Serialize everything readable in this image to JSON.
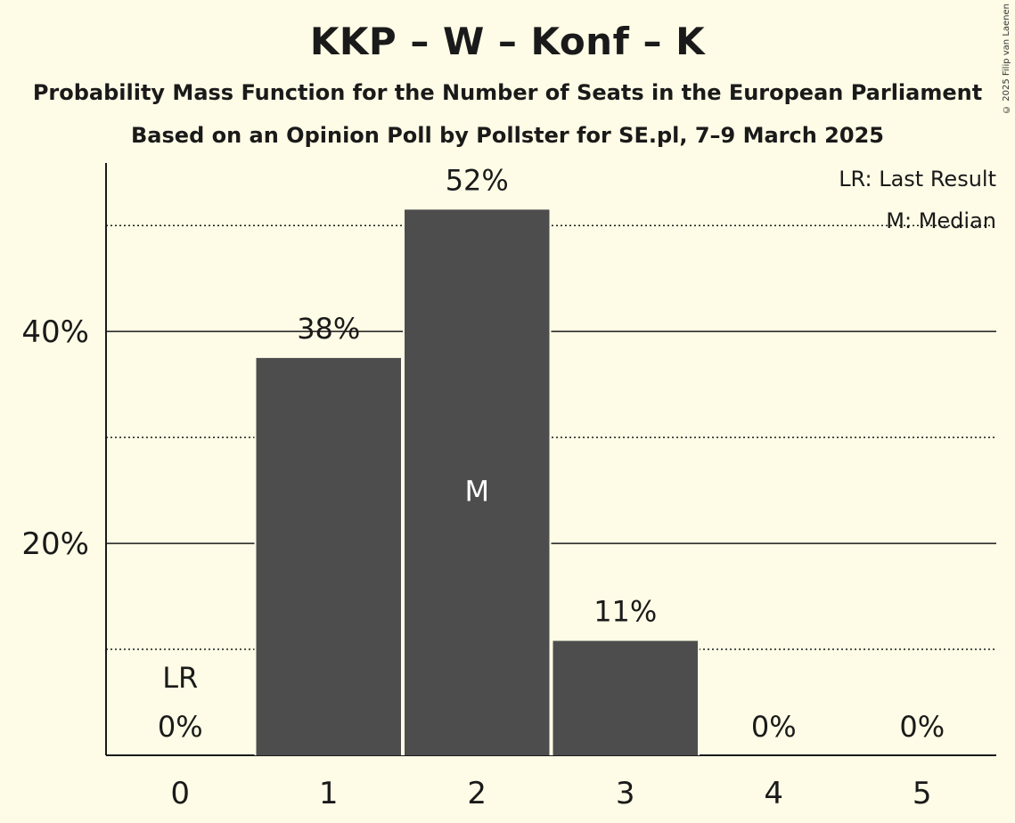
{
  "title": "KKP – W – Konf – K",
  "subtitle": "Probability Mass Function for the Number of Seats in the European Parliament",
  "subtitle2": "Based on an Opinion Poll by Pollster for SE.pl, 7–9 March 2025",
  "copyright": "© 2025 Filip van Laenen",
  "legend": {
    "last_result": "LR: Last Result",
    "median": "M: Median"
  },
  "colors": {
    "background": "#fefce6",
    "bar": "#4d4d4d",
    "text": "#1a1a1a"
  },
  "chart_data": {
    "type": "bar",
    "categories": [
      "0",
      "1",
      "2",
      "3",
      "4",
      "5"
    ],
    "values": [
      0,
      37.5,
      51.5,
      10.8,
      0,
      0
    ],
    "data_labels": [
      "0%",
      "38%",
      "52%",
      "11%",
      "0%",
      "0%"
    ],
    "ylim": [
      0,
      56
    ],
    "y_ticks": [
      20,
      40
    ],
    "y_tick_labels": [
      "20%",
      "40%"
    ],
    "y_minor_gridlines": [
      10,
      30,
      50
    ],
    "grid": true,
    "last_result_category": "0",
    "last_result_label": "LR",
    "median_category": "2",
    "median_label": "M",
    "legend_position": "top-right"
  }
}
